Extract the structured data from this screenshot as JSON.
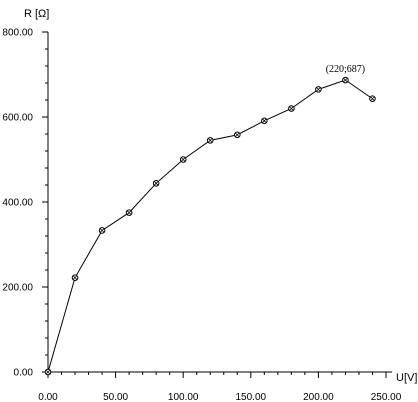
{
  "chart_data": {
    "type": "line",
    "title": "",
    "xlabel": "U[V]",
    "ylabel": "R [Ω]",
    "xlim": [
      0,
      250
    ],
    "ylim": [
      0,
      800
    ],
    "grid": false,
    "x_ticks": [
      0,
      50,
      100,
      150,
      200,
      250
    ],
    "y_ticks": [
      0,
      200,
      400,
      600,
      800
    ],
    "x_tick_labels": [
      "0.00",
      "50.00",
      "100.00",
      "150.00",
      "200.00",
      "250.00"
    ],
    "y_tick_labels": [
      "0.00",
      "200.00",
      "400.00",
      "600.00",
      "800.00"
    ],
    "series": [
      {
        "x": [
          0,
          20,
          40,
          60,
          80,
          100,
          120,
          140,
          160,
          180,
          200,
          220,
          240
        ],
        "y": [
          0,
          222,
          333,
          375,
          444,
          500,
          545,
          558,
          591,
          620,
          665,
          687,
          643
        ]
      }
    ],
    "annotations": [
      {
        "text": "(220;687)",
        "x": 220,
        "y": 687
      }
    ],
    "colors": {
      "line": "#000000",
      "marker": "#000000"
    }
  }
}
